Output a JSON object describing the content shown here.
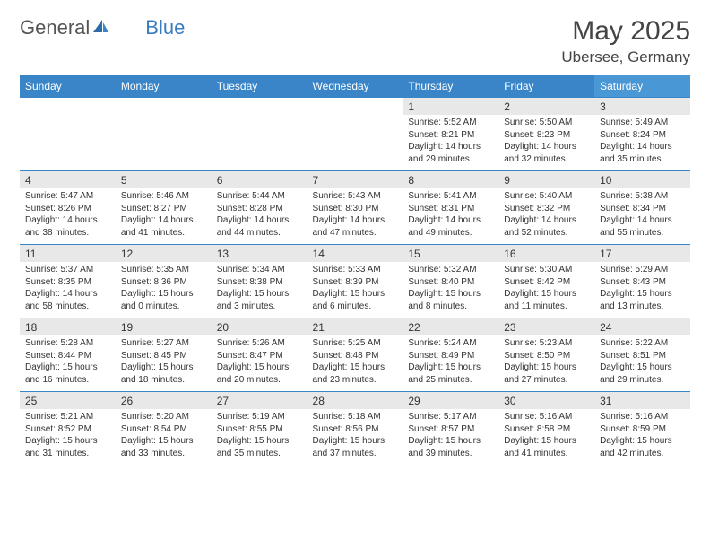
{
  "brand": {
    "part1": "General",
    "part2": "Blue"
  },
  "title": "May 2025",
  "location": "Ubersee, Germany",
  "colors": {
    "header_bg": "#3a85c7",
    "header_bg_sat": "#4a97d6",
    "row_border": "#3a85c7",
    "num_bg": "#e8e8e8",
    "text": "#333333",
    "brand_blue": "#3a7cc0"
  },
  "dow": [
    "Sunday",
    "Monday",
    "Tuesday",
    "Wednesday",
    "Thursday",
    "Friday",
    "Saturday"
  ],
  "weeks": [
    [
      null,
      null,
      null,
      null,
      {
        "n": "1",
        "sr": "5:52 AM",
        "ss": "8:21 PM",
        "dl": "14 hours and 29 minutes."
      },
      {
        "n": "2",
        "sr": "5:50 AM",
        "ss": "8:23 PM",
        "dl": "14 hours and 32 minutes."
      },
      {
        "n": "3",
        "sr": "5:49 AM",
        "ss": "8:24 PM",
        "dl": "14 hours and 35 minutes."
      }
    ],
    [
      {
        "n": "4",
        "sr": "5:47 AM",
        "ss": "8:26 PM",
        "dl": "14 hours and 38 minutes."
      },
      {
        "n": "5",
        "sr": "5:46 AM",
        "ss": "8:27 PM",
        "dl": "14 hours and 41 minutes."
      },
      {
        "n": "6",
        "sr": "5:44 AM",
        "ss": "8:28 PM",
        "dl": "14 hours and 44 minutes."
      },
      {
        "n": "7",
        "sr": "5:43 AM",
        "ss": "8:30 PM",
        "dl": "14 hours and 47 minutes."
      },
      {
        "n": "8",
        "sr": "5:41 AM",
        "ss": "8:31 PM",
        "dl": "14 hours and 49 minutes."
      },
      {
        "n": "9",
        "sr": "5:40 AM",
        "ss": "8:32 PM",
        "dl": "14 hours and 52 minutes."
      },
      {
        "n": "10",
        "sr": "5:38 AM",
        "ss": "8:34 PM",
        "dl": "14 hours and 55 minutes."
      }
    ],
    [
      {
        "n": "11",
        "sr": "5:37 AM",
        "ss": "8:35 PM",
        "dl": "14 hours and 58 minutes."
      },
      {
        "n": "12",
        "sr": "5:35 AM",
        "ss": "8:36 PM",
        "dl": "15 hours and 0 minutes."
      },
      {
        "n": "13",
        "sr": "5:34 AM",
        "ss": "8:38 PM",
        "dl": "15 hours and 3 minutes."
      },
      {
        "n": "14",
        "sr": "5:33 AM",
        "ss": "8:39 PM",
        "dl": "15 hours and 6 minutes."
      },
      {
        "n": "15",
        "sr": "5:32 AM",
        "ss": "8:40 PM",
        "dl": "15 hours and 8 minutes."
      },
      {
        "n": "16",
        "sr": "5:30 AM",
        "ss": "8:42 PM",
        "dl": "15 hours and 11 minutes."
      },
      {
        "n": "17",
        "sr": "5:29 AM",
        "ss": "8:43 PM",
        "dl": "15 hours and 13 minutes."
      }
    ],
    [
      {
        "n": "18",
        "sr": "5:28 AM",
        "ss": "8:44 PM",
        "dl": "15 hours and 16 minutes."
      },
      {
        "n": "19",
        "sr": "5:27 AM",
        "ss": "8:45 PM",
        "dl": "15 hours and 18 minutes."
      },
      {
        "n": "20",
        "sr": "5:26 AM",
        "ss": "8:47 PM",
        "dl": "15 hours and 20 minutes."
      },
      {
        "n": "21",
        "sr": "5:25 AM",
        "ss": "8:48 PM",
        "dl": "15 hours and 23 minutes."
      },
      {
        "n": "22",
        "sr": "5:24 AM",
        "ss": "8:49 PM",
        "dl": "15 hours and 25 minutes."
      },
      {
        "n": "23",
        "sr": "5:23 AM",
        "ss": "8:50 PM",
        "dl": "15 hours and 27 minutes."
      },
      {
        "n": "24",
        "sr": "5:22 AM",
        "ss": "8:51 PM",
        "dl": "15 hours and 29 minutes."
      }
    ],
    [
      {
        "n": "25",
        "sr": "5:21 AM",
        "ss": "8:52 PM",
        "dl": "15 hours and 31 minutes."
      },
      {
        "n": "26",
        "sr": "5:20 AM",
        "ss": "8:54 PM",
        "dl": "15 hours and 33 minutes."
      },
      {
        "n": "27",
        "sr": "5:19 AM",
        "ss": "8:55 PM",
        "dl": "15 hours and 35 minutes."
      },
      {
        "n": "28",
        "sr": "5:18 AM",
        "ss": "8:56 PM",
        "dl": "15 hours and 37 minutes."
      },
      {
        "n": "29",
        "sr": "5:17 AM",
        "ss": "8:57 PM",
        "dl": "15 hours and 39 minutes."
      },
      {
        "n": "30",
        "sr": "5:16 AM",
        "ss": "8:58 PM",
        "dl": "15 hours and 41 minutes."
      },
      {
        "n": "31",
        "sr": "5:16 AM",
        "ss": "8:59 PM",
        "dl": "15 hours and 42 minutes."
      }
    ]
  ],
  "labels": {
    "sunrise": "Sunrise: ",
    "sunset": "Sunset: ",
    "daylight": "Daylight: "
  }
}
